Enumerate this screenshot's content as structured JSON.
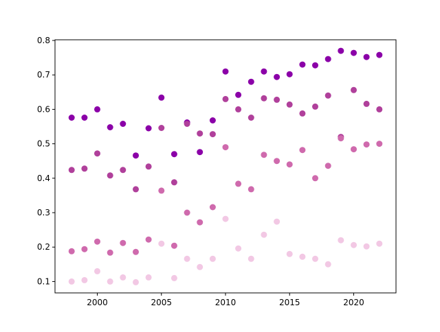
{
  "chart_data": {
    "type": "scatter",
    "title": "",
    "xlabel": "",
    "ylabel": "",
    "xlim": [
      1996.7,
      2023.3
    ],
    "ylim": [
      0.067,
      0.802
    ],
    "xticks": [
      2000,
      2005,
      2010,
      2015,
      2020
    ],
    "yticks": [
      0.1,
      0.2,
      0.3,
      0.4,
      0.5,
      0.6,
      0.7,
      0.8
    ],
    "grid": false,
    "legend": "none",
    "x": [
      1998,
      1999,
      2000,
      2001,
      2002,
      2003,
      2004,
      2005,
      2006,
      2007,
      2008,
      2009,
      2010,
      2011,
      2012,
      2013,
      2014,
      2015,
      2016,
      2017,
      2018,
      2019,
      2020,
      2021,
      2022
    ],
    "series": [
      {
        "color": "#8b00a8",
        "values": [
          0.576,
          0.576,
          0.6,
          0.548,
          0.558,
          0.466,
          0.545,
          0.634,
          0.47,
          0.562,
          0.476,
          0.568,
          0.71,
          0.642,
          0.68,
          0.71,
          0.694,
          0.702,
          0.73,
          0.728,
          0.746,
          0.77,
          0.764,
          0.752,
          0.758
        ]
      },
      {
        "color": "#b0409b",
        "values": [
          0.424,
          0.428,
          0.472,
          0.408,
          0.424,
          0.368,
          0.434,
          0.546,
          0.388,
          0.558,
          0.53,
          0.528,
          0.63,
          0.6,
          0.576,
          0.632,
          0.628,
          0.614,
          0.588,
          0.608,
          0.64,
          0.52,
          0.656,
          0.616,
          0.6
        ]
      },
      {
        "color": "#cf6aad",
        "values": [
          0.188,
          0.194,
          0.216,
          0.184,
          0.212,
          0.186,
          0.222,
          0.364,
          0.204,
          0.3,
          0.272,
          0.316,
          0.49,
          0.384,
          0.368,
          0.468,
          0.45,
          0.44,
          0.482,
          0.4,
          0.436,
          0.516,
          0.484,
          0.498,
          0.5
        ]
      },
      {
        "color": "#f2c8e4",
        "values": [
          0.1,
          0.104,
          0.13,
          0.1,
          0.112,
          0.098,
          0.112,
          0.21,
          0.11,
          0.166,
          0.142,
          0.166,
          0.282,
          0.196,
          0.166,
          0.236,
          0.274,
          0.18,
          0.172,
          0.166,
          0.15,
          0.22,
          0.206,
          0.202,
          0.21
        ]
      }
    ]
  }
}
